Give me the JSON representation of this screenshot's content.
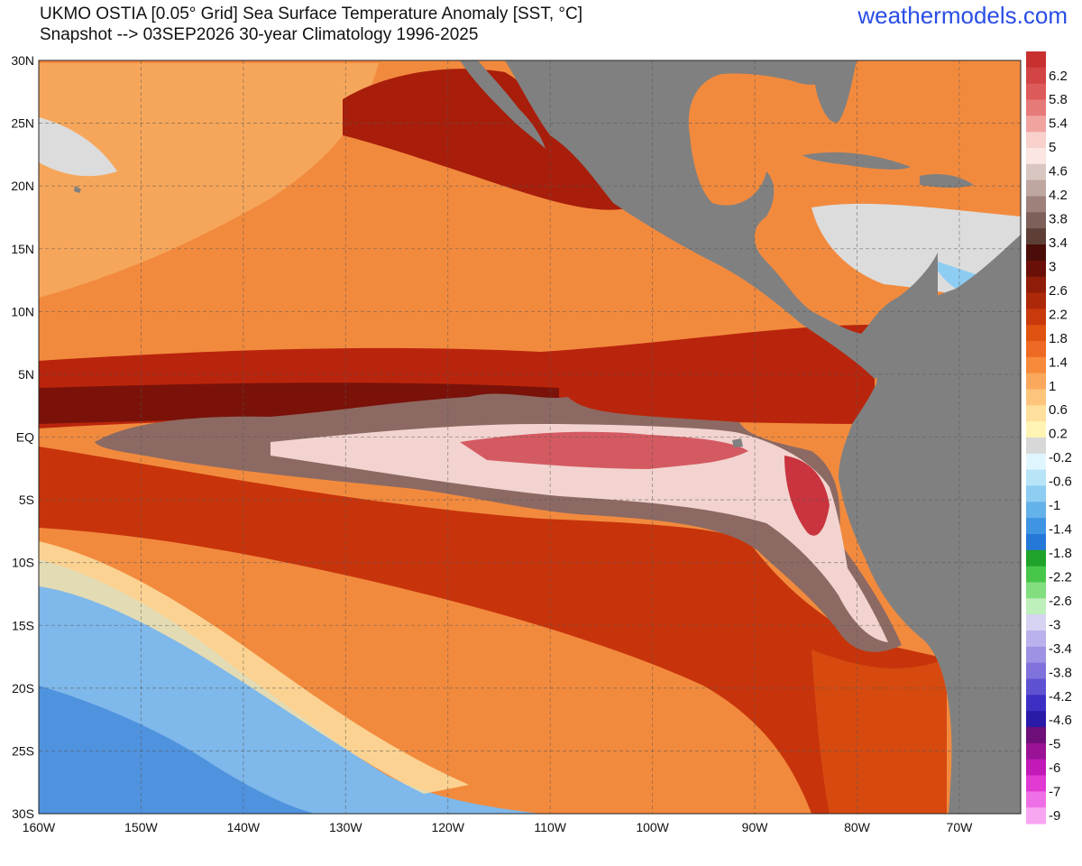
{
  "header": {
    "title_line1": "UKMO OSTIA [0.05° Grid] Sea Surface Temperature Anomaly [SST, °C]",
    "title_line2": "Snapshot --> 03SEP2026   30-year Climatology 1996-2025",
    "brand": "weathermodels.com"
  },
  "map": {
    "region": {
      "lon_min": -160,
      "lon_max": -64,
      "lat_min": -30,
      "lat_max": 30
    },
    "lat_labels": [
      "30N",
      "25N",
      "20N",
      "15N",
      "10N",
      "5N",
      "EQ",
      "5S",
      "10S",
      "15S",
      "20S",
      "25S",
      "30S"
    ],
    "lon_labels": [
      "160W",
      "150W",
      "140W",
      "130W",
      "120W",
      "110W",
      "100W",
      "90W",
      "80W",
      "70W"
    ],
    "colors": {
      "land": "#808080",
      "gridline": "#555555"
    }
  },
  "colorbar": {
    "labels": [
      "6.2",
      "5.8",
      "5.4",
      "5",
      "4.6",
      "4.2",
      "3.8",
      "3.4",
      "3",
      "2.6",
      "2.2",
      "1.8",
      "1.4",
      "1",
      "0.6",
      "0.2",
      "-0.2",
      "-0.6",
      "-1",
      "-1.4",
      "-1.8",
      "-2.2",
      "-2.6",
      "-3",
      "-3.4",
      "-3.8",
      "-4.2",
      "-4.6",
      "-5",
      "-6",
      "-7",
      "-9"
    ],
    "colors": [
      "#c8302f",
      "#d24444",
      "#dc5a5a",
      "#e67a78",
      "#f0a4a0",
      "#f8d0cc",
      "#fbe6e2",
      "#d9c6c1",
      "#bfa6a0",
      "#9d817a",
      "#7c6059",
      "#5e3f38",
      "#4a0d08",
      "#6b1008",
      "#8f1c08",
      "#ad2808",
      "#c83a0b",
      "#e0520f",
      "#ee6a24",
      "#f88a3c",
      "#fba85c",
      "#fdc47c",
      "#fee09c",
      "#fff4b4",
      "#d8d8d8",
      "#e0f6ff",
      "#b8e4f8",
      "#8ecdf2",
      "#64b2ea",
      "#3f95e2",
      "#2478d8",
      "#1fa32a",
      "#47c64a",
      "#82de7e",
      "#bfefbb",
      "#d6d2f2",
      "#bab2ec",
      "#9e92e4",
      "#7f72dc",
      "#5e52d2",
      "#3c30c4",
      "#2a1aa8",
      "#6e0e78",
      "#9a1296",
      "#c21ab8",
      "#e03ad2",
      "#ef70e6",
      "#f8a6f2"
    ]
  }
}
